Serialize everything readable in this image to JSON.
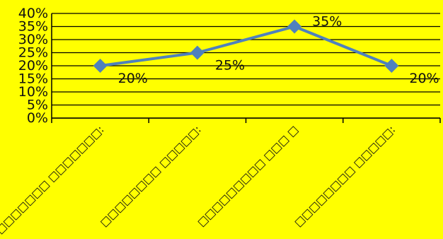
{
  "chart_data": {
    "type": "line",
    "categories": [
      "□□□□□□□ □□□□□□□:",
      "□□□□□□□□ □□□□□:",
      "□□□□□□□□□ □□□ □",
      "□□□□□□□□ □□□□□:"
    ],
    "series": [
      {
        "values": [
          20,
          25,
          35,
          20
        ]
      }
    ],
    "data_labels": [
      "20%",
      "25%",
      "35%",
      "20%"
    ],
    "y_ticks": [
      "0%",
      "5%",
      "10%",
      "15%",
      "20%",
      "25%",
      "30%",
      "35%",
      "40%"
    ],
    "ylim": [
      0,
      40
    ],
    "grid": true,
    "legend": "none",
    "colors": {
      "background": "#ffff00",
      "line": "#4f81bd",
      "grid": "#000000"
    }
  }
}
